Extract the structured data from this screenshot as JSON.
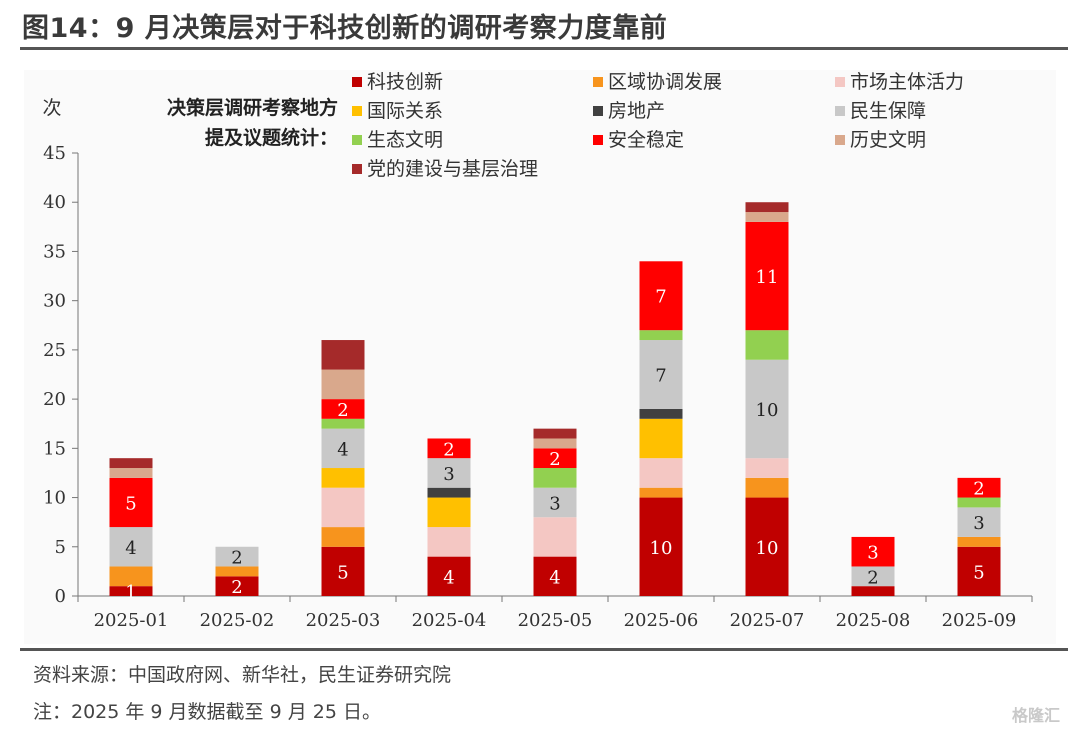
{
  "figure": {
    "title": "图14：9 月决策层对于科技创新的调研考察力度靠前",
    "source": "资料来源：中国政府网、新华社，民生证券研究院",
    "note": "注：2025 年 9 月数据截至 9 月 25 日。",
    "watermark": "格隆汇"
  },
  "chart_data": {
    "type": "bar",
    "stacked": true,
    "ylabel": "次",
    "panel_label": [
      "决策层调研考察地方",
      "提及议题统计："
    ],
    "ylim": [
      0,
      45
    ],
    "yticks": [
      0,
      5,
      10,
      15,
      20,
      25,
      30,
      35,
      40,
      45
    ],
    "grid": false,
    "legend_position": "top",
    "categories": [
      "2025-01",
      "2025-02",
      "2025-03",
      "2025-04",
      "2025-05",
      "2025-06",
      "2025-07",
      "2025-08",
      "2025-09"
    ],
    "series": [
      {
        "name": "科技创新",
        "color": "#c00000",
        "values": [
          1,
          2,
          5,
          4,
          4,
          10,
          10,
          1,
          5
        ],
        "labeled": [
          true,
          true,
          true,
          true,
          true,
          true,
          true,
          false,
          true
        ]
      },
      {
        "name": "区域协调发展",
        "color": "#f7941d",
        "values": [
          2,
          1,
          2,
          0,
          0,
          1,
          2,
          0,
          1
        ]
      },
      {
        "name": "市场主体活力",
        "color": "#f4c7c3",
        "values": [
          0,
          0,
          4,
          3,
          4,
          3,
          2,
          0,
          0
        ]
      },
      {
        "name": "国际关系",
        "color": "#ffc000",
        "values": [
          0,
          0,
          2,
          3,
          0,
          4,
          0,
          0,
          0
        ]
      },
      {
        "name": "房地产",
        "color": "#404040",
        "values": [
          0,
          0,
          0,
          1,
          0,
          1,
          0,
          0,
          0
        ]
      },
      {
        "name": "民生保障",
        "color": "#c8c8c8",
        "values": [
          4,
          2,
          4,
          3,
          3,
          7,
          10,
          2,
          3
        ],
        "labeled": [
          true,
          true,
          true,
          true,
          true,
          true,
          true,
          true,
          true
        ]
      },
      {
        "name": "生态文明",
        "color": "#92d050",
        "values": [
          0,
          0,
          1,
          0,
          2,
          1,
          3,
          0,
          1
        ]
      },
      {
        "name": "安全稳定",
        "color": "#ff0000",
        "values": [
          5,
          0,
          2,
          2,
          2,
          7,
          11,
          3,
          2
        ],
        "labeled": [
          true,
          false,
          true,
          true,
          true,
          true,
          true,
          true,
          true
        ]
      },
      {
        "name": "历史文明",
        "color": "#d9a88c",
        "values": [
          1,
          0,
          3,
          0,
          1,
          0,
          1,
          0,
          0
        ]
      },
      {
        "name": "党的建设与基层治理",
        "color": "#a52a2a",
        "values": [
          1,
          0,
          3,
          0,
          1,
          0,
          1,
          0,
          0
        ]
      }
    ]
  }
}
